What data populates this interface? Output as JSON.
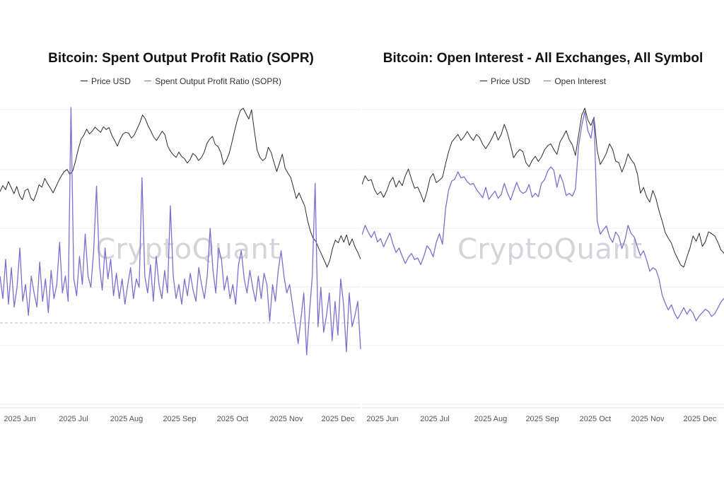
{
  "chart_data": [
    {
      "type": "line",
      "title": "Bitcoin: Spent Output Profit Ratio (SOPR)",
      "watermark": "CryptoQuant",
      "x_tick_labels": [
        "2025 Jun",
        "2025 Jul",
        "2025 Aug",
        "2025 Sep",
        "2025 Oct",
        "2025 Nov",
        "2025 Dec"
      ],
      "grid": true,
      "reference_line": {
        "value": 1.0,
        "style": "dashed"
      },
      "series": [
        {
          "name": "Price USD",
          "color": "#2b2b2b",
          "axis": "price",
          "values": [
            103500,
            105000,
            104000,
            106000,
            104500,
            103000,
            104800,
            102500,
            101500,
            103800,
            104200,
            102000,
            101200,
            103000,
            105200,
            104600,
            106800,
            105500,
            104400,
            103200,
            104700,
            106200,
            107500,
            108500,
            109000,
            107800,
            108600,
            111000,
            114000,
            116500,
            117500,
            119000,
            117800,
            118500,
            119500,
            118800,
            118200,
            119600,
            118900,
            119400,
            117500,
            116200,
            114800,
            116500,
            117800,
            118200,
            118000,
            116800,
            117500,
            119000,
            120500,
            122500,
            121500,
            119800,
            118500,
            117000,
            116200,
            117300,
            118500,
            117600,
            114800,
            113500,
            112600,
            112000,
            113300,
            112200,
            111700,
            110600,
            111400,
            113000,
            112400,
            111200,
            111900,
            113200,
            115400,
            116500,
            117200,
            115200,
            114700,
            113200,
            110200,
            111300,
            113000,
            115800,
            118800,
            121500,
            123600,
            124200,
            122800,
            121500,
            123800,
            118500,
            113800,
            112000,
            111200,
            111800,
            114500,
            113200,
            110800,
            108500,
            110600,
            112800,
            109300,
            108100,
            107000,
            104500,
            101800,
            103200,
            101500,
            100000,
            96500,
            93800,
            92000,
            91200,
            89500,
            88000,
            86500,
            84800,
            86500,
            89600,
            91500,
            90800,
            92600,
            91000,
            92800,
            90200,
            91800,
            89800,
            88500,
            86800
          ]
        },
        {
          "name": "Spent Output Profit Ratio (SOPR)",
          "color": "#7b6fd0",
          "axis": "sopr",
          "values": [
            1.012,
            1.004,
            1.018,
            1.002,
            1.015,
            1.001,
            1.008,
            1.022,
            1.003,
            1.009,
            0.998,
            1.012,
            1.006,
            1.001,
            1.017,
            1.003,
            1.011,
            0.999,
            1.014,
            1.004,
            1.009,
            1.024,
            1.006,
            1.012,
            1.003,
            1.072,
            1.011,
            1.005,
            1.019,
            1.009,
            1.027,
            1.012,
            1.008,
            1.021,
            1.044,
            1.016,
            1.007,
            1.022,
            1.011,
            1.018,
            1.005,
            1.013,
            1.004,
            1.011,
            1.002,
            1.009,
            1.015,
            1.004,
            1.011,
            1.008,
            1.047,
            1.012,
            1.006,
            1.016,
            1.003,
            1.019,
            1.009,
            1.004,
            1.014,
            1.006,
            1.037,
            1.012,
            1.004,
            1.009,
            1.002,
            1.011,
            1.005,
            1.013,
            1.007,
            1.003,
            1.015,
            1.009,
            1.004,
            1.012,
            1.029,
            1.014,
            1.006,
            1.022,
            1.018,
            1.007,
            1.012,
            1.004,
            1.009,
            1.002,
            1.016,
            1.021,
            1.011,
            1.006,
            1.014,
            1.008,
            1.003,
            1.012,
            1.004,
            1.013,
            1.009,
            0.996,
            1.009,
            1.003,
            1.014,
            1.021,
            1.012,
            1.006,
            1.009,
            1.002,
            0.995,
            0.988,
            0.997,
            1.006,
            0.984,
            0.999,
            1.012,
            1.045,
            0.994,
            1.008,
            0.992,
            0.998,
            1.006,
            0.989,
            1.003,
            0.991,
            1.011,
            1.002,
            0.985,
            1.006,
            0.994,
            0.998,
            1.003,
            0.986
          ]
        }
      ]
    },
    {
      "type": "line",
      "title": "Bitcoin: Open Interest - All Exchanges, All Symbol",
      "watermark": "CryptoQuant",
      "x_tick_labels": [
        "2025 Jun",
        "2025 Jul",
        "2025 Aug",
        "2025 Sep",
        "2025 Oct",
        "2025 Nov",
        "2025 Dec"
      ],
      "grid": true,
      "series": [
        {
          "name": "Price USD",
          "color": "#2b2b2b",
          "axis": "price",
          "values": [
            105500,
            107800,
            106500,
            106800,
            104200,
            102800,
            103600,
            102100,
            103800,
            106200,
            107400,
            104800,
            106500,
            105200,
            107800,
            109600,
            106900,
            104500,
            104800,
            103000,
            100800,
            103600,
            107200,
            108400,
            106000,
            106600,
            107400,
            111000,
            114200,
            116800,
            117800,
            118800,
            117200,
            118200,
            119600,
            118200,
            117200,
            118800,
            118000,
            116200,
            115000,
            116300,
            117800,
            119600,
            117300,
            118800,
            121500,
            119200,
            116000,
            112600,
            113900,
            114800,
            114200,
            111300,
            110200,
            111900,
            113000,
            111600,
            112800,
            114700,
            115800,
            116300,
            114800,
            113500,
            116800,
            118200,
            119800,
            117400,
            116000,
            113200,
            118600,
            123800,
            125800,
            122600,
            121200,
            123400,
            114600,
            110800,
            112200,
            113800,
            116300,
            114800,
            111700,
            111300,
            108800,
            110900,
            113600,
            112100,
            111000,
            108300,
            103200,
            104700,
            102200,
            100800,
            103900,
            101800,
            98500,
            95800,
            92700,
            91200,
            89900,
            87500,
            85800,
            84100,
            83500,
            86200,
            88600,
            91800,
            90400,
            92500,
            89000,
            90300,
            92900,
            92400,
            91800,
            90200,
            88100,
            87200
          ]
        },
        {
          "name": "Open Interest",
          "color": "#7b6fd0",
          "axis": "oi",
          "values": [
            64.5,
            66.2,
            65.0,
            64.0,
            65.1,
            63.2,
            63.8,
            62.3,
            63.6,
            64.8,
            62.8,
            61.3,
            62.1,
            60.6,
            59.3,
            60.4,
            61.1,
            60.0,
            60.3,
            59.1,
            60.6,
            62.5,
            61.8,
            60.5,
            63.1,
            64.7,
            62.8,
            69.2,
            72.6,
            74.2,
            74.6,
            75.9,
            74.8,
            75.0,
            74.1,
            73.6,
            73.8,
            72.7,
            72.0,
            71.2,
            73.1,
            70.9,
            71.7,
            72.4,
            71.1,
            71.8,
            73.8,
            72.1,
            70.8,
            72.4,
            74.0,
            72.5,
            72.0,
            72.3,
            73.6,
            71.3,
            72.0,
            71.4,
            73.8,
            74.5,
            76.0,
            76.8,
            76.2,
            73.1,
            75.4,
            74.0,
            71.6,
            72.0,
            71.5,
            72.8,
            80.6,
            84.2,
            86.8,
            83.3,
            82.0,
            85.6,
            67.0,
            64.6,
            65.4,
            66.1,
            64.1,
            63.1,
            65.0,
            64.2,
            62.0,
            63.6,
            66.2,
            64.7,
            64.1,
            62.3,
            60.7,
            61.6,
            59.9,
            57.9,
            58.5,
            58.2,
            56.5,
            53.6,
            52.1,
            50.9,
            51.8,
            50.3,
            49.3,
            50.2,
            51.3,
            50.1,
            51.0,
            50.3,
            48.9,
            49.8,
            50.4,
            51.0,
            50.6,
            49.7,
            50.2,
            51.2,
            52.3,
            53.0
          ]
        }
      ]
    }
  ]
}
